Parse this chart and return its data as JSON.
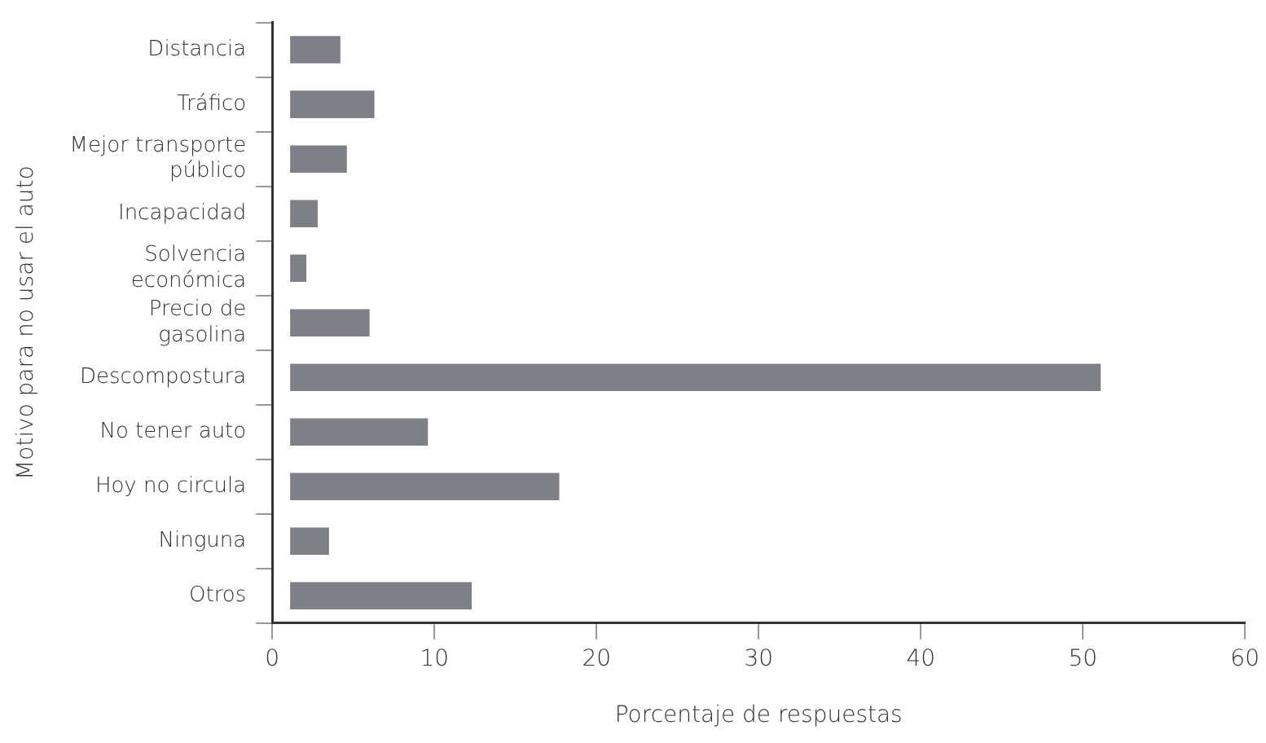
{
  "chart_data": {
    "type": "bar",
    "orientation": "horizontal",
    "xlabel": "Porcentaje de respuestas",
    "ylabel": "Motivo para no usar el auto",
    "categories": [
      "Distancia",
      "Tráfico",
      "Mejor transporte público",
      "Incapacidad",
      "Solvencia económica",
      "Precio de gasolina",
      "Descompostura",
      "No tener auto",
      "Hoy no circula",
      "Ninguna",
      "Otros"
    ],
    "base": [
      1.1,
      1.1,
      1.1,
      1.1,
      1.1,
      1.1,
      1.1,
      1.1,
      1.1,
      1.1,
      1.1
    ],
    "values": [
      3.1,
      5.2,
      3.5,
      1.7,
      1.0,
      4.9,
      50.0,
      8.5,
      16.6,
      2.4,
      11.2
    ],
    "color": "#7f8085",
    "xlim": [
      0,
      60
    ],
    "xticks": [
      0,
      10,
      20,
      30,
      40,
      50,
      60
    ],
    "grid": false,
    "legend": false
  }
}
